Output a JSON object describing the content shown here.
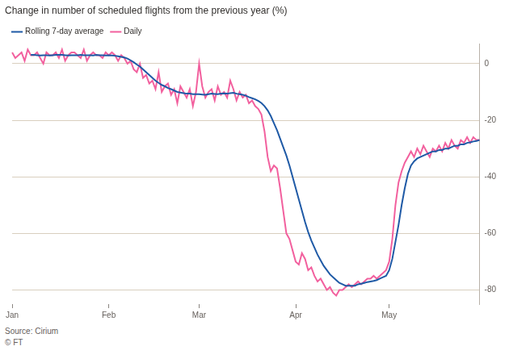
{
  "chart_data": {
    "type": "line",
    "title": "Change in number of scheduled flights from the previous year (%)",
    "source": "Source: Cirium",
    "credit": "© FT",
    "categories": [
      "Jan",
      null,
      null,
      null,
      null,
      null,
      null,
      null,
      null,
      null,
      null,
      null,
      null,
      null,
      null,
      null,
      null,
      null,
      null,
      null,
      null,
      null,
      null,
      null,
      null,
      null,
      null,
      null,
      null,
      null,
      null,
      "Feb",
      null,
      null,
      null,
      null,
      null,
      null,
      null,
      null,
      null,
      null,
      null,
      null,
      null,
      null,
      null,
      null,
      null,
      null,
      null,
      null,
      null,
      null,
      null,
      null,
      null,
      null,
      null,
      null,
      "Mar",
      null,
      null,
      null,
      null,
      null,
      null,
      null,
      null,
      null,
      null,
      null,
      null,
      null,
      null,
      null,
      null,
      null,
      null,
      null,
      null,
      null,
      null,
      null,
      null,
      null,
      null,
      null,
      null,
      null,
      null,
      "Apr",
      null,
      null,
      null,
      null,
      null,
      null,
      null,
      null,
      null,
      null,
      null,
      null,
      null,
      null,
      null,
      null,
      null,
      null,
      null,
      null,
      null,
      null,
      null,
      null,
      null,
      null,
      null,
      null,
      null,
      "May",
      null,
      null,
      null,
      null,
      null,
      null,
      null,
      null,
      null,
      null,
      null,
      null,
      null,
      null,
      null,
      null,
      null,
      null,
      null,
      null,
      null,
      null,
      null,
      null,
      null,
      null,
      null,
      null,
      null
    ],
    "series": [
      {
        "name": "Rolling 7-day average",
        "color": "#1f5aa6",
        "values": [
          null,
          null,
          null,
          null,
          null,
          null,
          3.1,
          3.1,
          3.0,
          2.9,
          3.0,
          3.0,
          2.9,
          3.0,
          3.1,
          3.1,
          3.1,
          3.0,
          2.9,
          3.0,
          3.0,
          3.0,
          3.1,
          3.0,
          3.0,
          3.0,
          2.9,
          3.1,
          3.0,
          3.0,
          2.9,
          3.0,
          2.9,
          2.8,
          2.6,
          2.4,
          2.2,
          1.8,
          1.2,
          0.5,
          -0.3,
          -1.0,
          -2.0,
          -3.0,
          -4.0,
          -5.0,
          -6.0,
          -6.8,
          -7.5,
          -8.0,
          -8.6,
          -9.0,
          -9.5,
          -10.0,
          -10.2,
          -10.4,
          -10.6,
          -10.6,
          -10.8,
          -10.8,
          -10.8,
          -10.9,
          -11.0,
          -10.8,
          -10.6,
          -10.7,
          -10.8,
          -10.6,
          -10.5,
          -10.6,
          -10.4,
          -10.3,
          -10.6,
          -10.8,
          -11.0,
          -11.3,
          -11.8,
          -12.2,
          -12.6,
          -13.2,
          -13.9,
          -15.0,
          -16.5,
          -18.5,
          -21.0,
          -23.5,
          -26.5,
          -29.5,
          -32.5,
          -36.0,
          -40.0,
          -44,
          -48,
          -52,
          -56,
          -59.5,
          -62.5,
          -65,
          -67.5,
          -69.5,
          -71.5,
          -73,
          -74.5,
          -75.5,
          -76.5,
          -77.5,
          -78,
          -78.5,
          -78.5,
          -78.5,
          -78.5,
          -78,
          -77.8,
          -77.5,
          -77.2,
          -77,
          -76.8,
          -76.5,
          -76,
          -75.5,
          -75,
          -73,
          -69,
          -63,
          -57,
          -50,
          -44,
          -39,
          -36,
          -34.5,
          -33.5,
          -33,
          -32.5,
          -32,
          -31.5,
          -31,
          -31,
          -30.5,
          -30.5,
          -30,
          -30,
          -29.5,
          -29,
          -29,
          -28.5,
          -28.5,
          -28,
          -27.8,
          -27.5,
          -27.3,
          -27
        ]
      },
      {
        "name": "Daily",
        "color": "#f2609e",
        "values": [
          4,
          2,
          3,
          4,
          1,
          5,
          3,
          3,
          4,
          2,
          0,
          4,
          3,
          3,
          4,
          2,
          5,
          1,
          3,
          4,
          4,
          3,
          2,
          5,
          1,
          3,
          4,
          3,
          3,
          2,
          4,
          3,
          4,
          3,
          1,
          3,
          2,
          0,
          1,
          -2,
          -3,
          0,
          -5,
          -4,
          -7,
          -6,
          -9,
          -3,
          -10,
          -8,
          -7,
          -11,
          -9,
          -14,
          -8,
          -10,
          -12,
          -9,
          -15,
          -10,
          0,
          -8,
          -12,
          -10,
          -9,
          -13,
          -8,
          -11,
          -10,
          -12,
          -6,
          -9,
          -13,
          -10,
          -12,
          -11,
          -14,
          -13,
          -15,
          -16,
          -18,
          -24,
          -33,
          -38,
          -36,
          -37,
          -44,
          -52,
          -60,
          -62,
          -66,
          -70,
          -71,
          -67,
          -69,
          -73,
          -72,
          -75,
          -77,
          -76,
          -78,
          -80,
          -79,
          -81,
          -82,
          -80,
          -80,
          -79,
          -78,
          -79,
          -78,
          -77,
          -78,
          -77,
          -76,
          -76,
          -75,
          -76,
          -75,
          -74,
          -73,
          -70,
          -62,
          -50,
          -42,
          -38,
          -35,
          -33,
          -31,
          -33,
          -30,
          -32,
          -29,
          -31,
          -33,
          -30,
          -31,
          -29,
          -31,
          -28,
          -30,
          -27,
          -29,
          -30,
          -27,
          -28,
          -26,
          -28,
          -26,
          -27,
          -27
        ]
      }
    ],
    "ylim": [
      -85,
      7
    ],
    "yticks": [
      0,
      -20,
      -40,
      -60,
      -80
    ],
    "grid": true,
    "legend": "top-left"
  }
}
